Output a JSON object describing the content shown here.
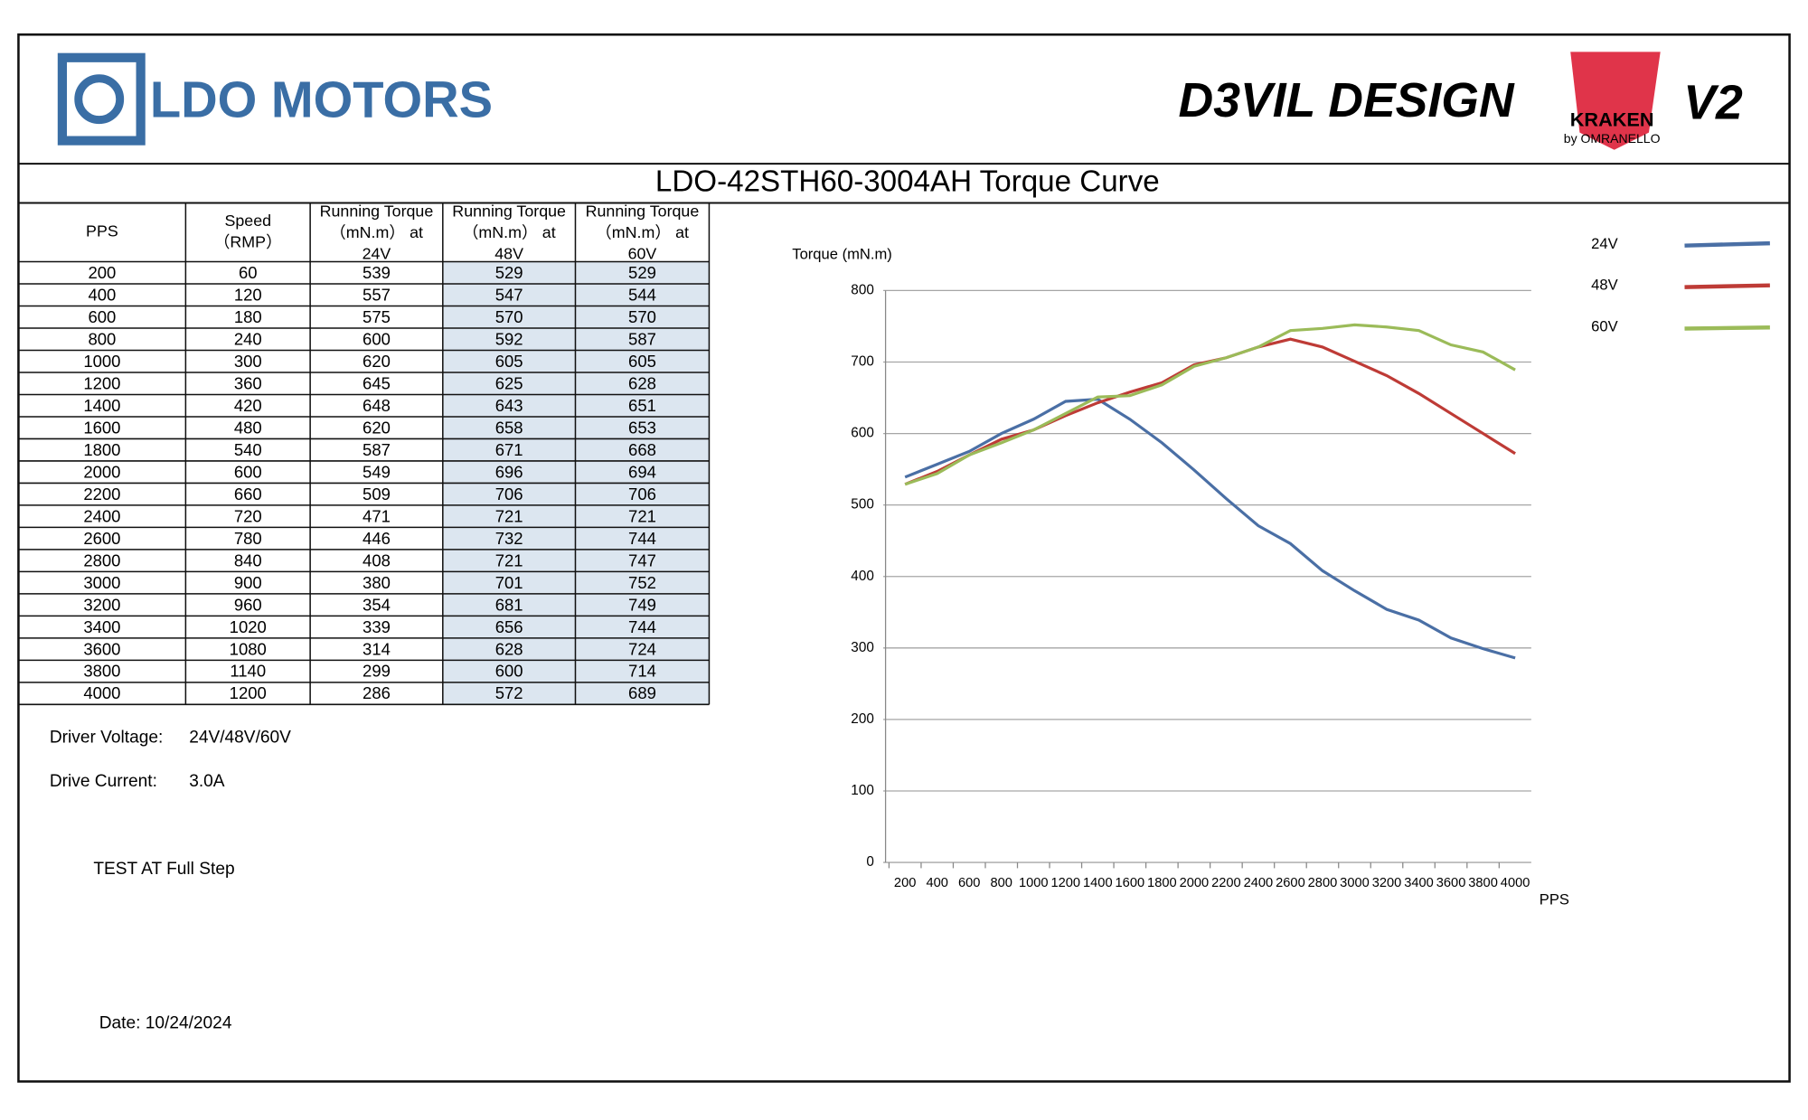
{
  "header": {
    "brand": "LDO MOTORS",
    "partner": "D3VIL DESIGN",
    "kraken": "KRAKEN",
    "kraken_by": "by OMRANELLO",
    "version": "V2"
  },
  "title": "LDO-42STH60-3004AH Torque Curve",
  "table": {
    "headers": [
      [
        "PPS"
      ],
      [
        "Speed",
        "（RMP）"
      ],
      [
        "Running Torque",
        "（mN.m） at",
        "24V"
      ],
      [
        "Running Torque",
        "（mN.m） at",
        "48V"
      ],
      [
        "Running Torque",
        "（mN.m） at",
        "60V"
      ]
    ],
    "speed": [
      60,
      120,
      180,
      240,
      300,
      360,
      420,
      480,
      540,
      600,
      660,
      720,
      780,
      840,
      900,
      960,
      1020,
      1080,
      1140,
      1200
    ]
  },
  "notes": {
    "voltage_label": "Driver Voltage:",
    "voltage": "24V/48V/60V",
    "current_label": "Drive Current:",
    "current": "3.0A",
    "test": "TEST AT Full Step",
    "date": "Date: 10/24/2024"
  },
  "chart_data": {
    "type": "line",
    "y_label": "Torque (mN.m)",
    "x_label": "PPS",
    "categories": [
      200,
      400,
      600,
      800,
      1000,
      1200,
      1400,
      1600,
      1800,
      2000,
      2200,
      2400,
      2600,
      2800,
      3000,
      3200,
      3400,
      3600,
      3800,
      4000
    ],
    "series": [
      {
        "name": "24V",
        "color": "#4a6fa5",
        "values": [
          539,
          557,
          575,
          600,
          620,
          645,
          648,
          620,
          587,
          549,
          509,
          471,
          446,
          408,
          380,
          354,
          339,
          314,
          299,
          286
        ]
      },
      {
        "name": "48V",
        "color": "#be3b36",
        "values": [
          529,
          547,
          570,
          592,
          605,
          625,
          643,
          658,
          671,
          696,
          706,
          721,
          732,
          721,
          701,
          681,
          656,
          628,
          600,
          572
        ]
      },
      {
        "name": "60V",
        "color": "#9bbb59",
        "values": [
          529,
          544,
          570,
          587,
          605,
          628,
          651,
          653,
          668,
          694,
          706,
          721,
          744,
          747,
          752,
          749,
          744,
          724,
          714,
          689
        ]
      }
    ],
    "ylim": [
      0,
      800
    ],
    "yticks": [
      0,
      100,
      200,
      300,
      400,
      500,
      600,
      700,
      800
    ],
    "grid": true
  }
}
